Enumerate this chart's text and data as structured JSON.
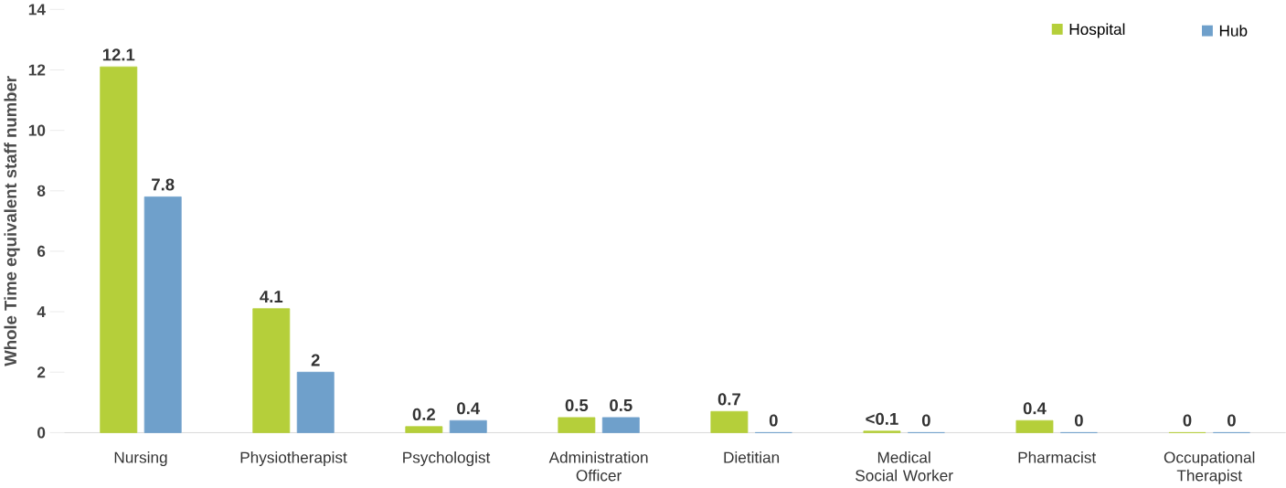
{
  "chart_data": {
    "type": "bar",
    "ylabel": "Whole Time equivalent staff number",
    "categories": [
      "Nursing",
      "Physiotherapist",
      "Psychologist",
      "Administration Officer",
      "Dietitian",
      "Medical Social Worker",
      "Pharmacist",
      "Occupational Therapist"
    ],
    "series": [
      {
        "name": "Hospital",
        "color": "#b5cf3a",
        "values": [
          12.1,
          4.1,
          0.2,
          0.5,
          0.7,
          0.05,
          0.4,
          0
        ],
        "value_labels": [
          "12.1",
          "4.1",
          "0.2",
          "0.5",
          "0.7",
          "<0.1",
          "0.4",
          "0"
        ]
      },
      {
        "name": "Hub",
        "color": "#6fa0cb",
        "values": [
          7.8,
          2,
          0.4,
          0.5,
          0,
          0,
          0,
          0
        ],
        "value_labels": [
          "7.8",
          "2",
          "0.4",
          "0.5",
          "0",
          "0",
          "0",
          "0"
        ]
      }
    ],
    "ylim": [
      0,
      14
    ],
    "yticks": [
      0,
      2,
      4,
      6,
      8,
      10,
      12,
      14
    ],
    "grid": false,
    "legend": "top right"
  }
}
